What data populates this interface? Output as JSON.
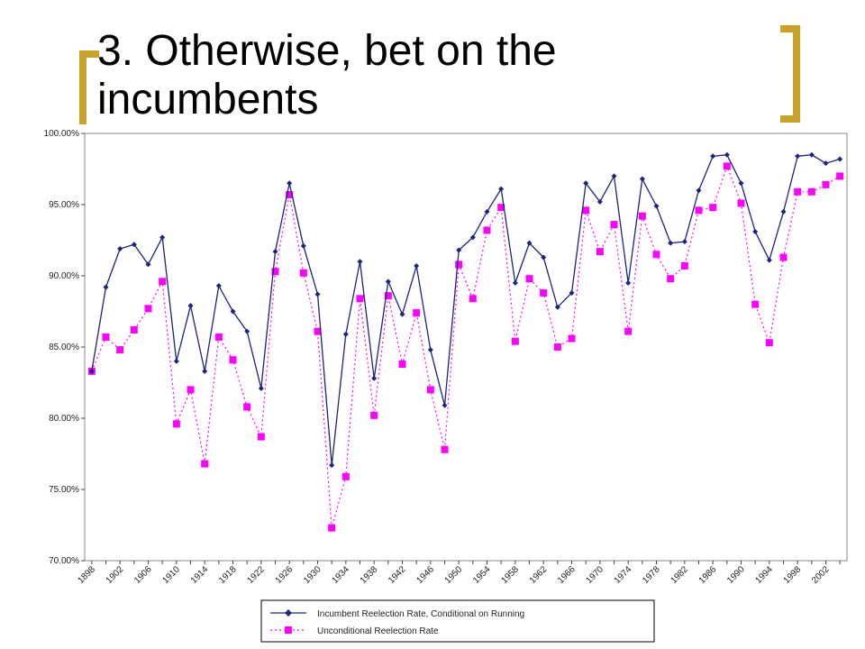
{
  "slide": {
    "title": "3. Otherwise, bet on the incumbents"
  },
  "colors": {
    "accent_bracket": "#c9a227",
    "series_conditional": "#1a237e",
    "series_unconditional": "#ff00ff"
  },
  "chart_data": {
    "type": "line",
    "title": "",
    "xlabel": "",
    "ylabel": "",
    "ylim": [
      70,
      100
    ],
    "y_ticks": [
      "70.00%",
      "75.00%",
      "80.00%",
      "85.00%",
      "90.00%",
      "95.00%",
      "100.00%"
    ],
    "x_tick_labels": [
      "1898",
      "1902",
      "1906",
      "1910",
      "1914",
      "1918",
      "1922",
      "1926",
      "1930",
      "1934",
      "1938",
      "1942",
      "1946",
      "1950",
      "1954",
      "1958",
      "1962",
      "1966",
      "1970",
      "1974",
      "1978",
      "1982",
      "1986",
      "1990",
      "1994",
      "1998",
      "2002"
    ],
    "x": [
      1898,
      1900,
      1902,
      1904,
      1906,
      1908,
      1910,
      1912,
      1914,
      1916,
      1918,
      1920,
      1922,
      1924,
      1926,
      1928,
      1930,
      1932,
      1934,
      1936,
      1938,
      1940,
      1942,
      1944,
      1946,
      1948,
      1950,
      1952,
      1954,
      1956,
      1958,
      1960,
      1962,
      1964,
      1966,
      1968,
      1970,
      1972,
      1974,
      1976,
      1978,
      1980,
      1982,
      1984,
      1986,
      1988,
      1990,
      1992,
      1994,
      1996,
      1998,
      2000,
      2002,
      2004
    ],
    "legend_position": "bottom",
    "grid": false,
    "series": [
      {
        "name": "Incumbent Reelection Rate, Conditional on Running",
        "marker": "diamond",
        "line": "solid",
        "values": [
          83.3,
          89.2,
          91.9,
          92.2,
          90.8,
          92.7,
          84.0,
          87.9,
          83.3,
          89.3,
          87.5,
          86.1,
          82.1,
          91.7,
          96.5,
          92.1,
          88.7,
          76.7,
          85.9,
          91.0,
          82.8,
          89.6,
          87.3,
          90.7,
          84.8,
          80.9,
          91.8,
          92.7,
          94.5,
          96.1,
          89.5,
          92.3,
          91.3,
          87.8,
          88.8,
          96.5,
          95.2,
          97.0,
          89.5,
          96.8,
          94.9,
          92.3,
          92.4,
          96.0,
          98.4,
          98.5,
          96.5,
          93.1,
          91.1,
          94.5,
          98.4,
          98.5,
          97.9,
          98.2
        ]
      },
      {
        "name": "Unconditional Reelection Rate",
        "marker": "square",
        "line": "dotted",
        "values": [
          83.3,
          85.7,
          84.8,
          86.2,
          87.7,
          89.6,
          79.6,
          82.0,
          76.8,
          85.7,
          84.1,
          80.8,
          78.7,
          90.3,
          95.7,
          90.2,
          86.1,
          72.3,
          75.9,
          88.4,
          80.2,
          88.6,
          83.8,
          87.4,
          82.0,
          77.8,
          90.8,
          88.4,
          93.2,
          94.8,
          85.4,
          89.8,
          88.8,
          85.0,
          85.6,
          94.6,
          91.7,
          93.6,
          86.1,
          94.2,
          91.5,
          89.8,
          90.7,
          94.6,
          94.8,
          97.7,
          95.1,
          88.0,
          85.3,
          91.3,
          95.9,
          95.9,
          96.4,
          97.0
        ]
      }
    ]
  }
}
